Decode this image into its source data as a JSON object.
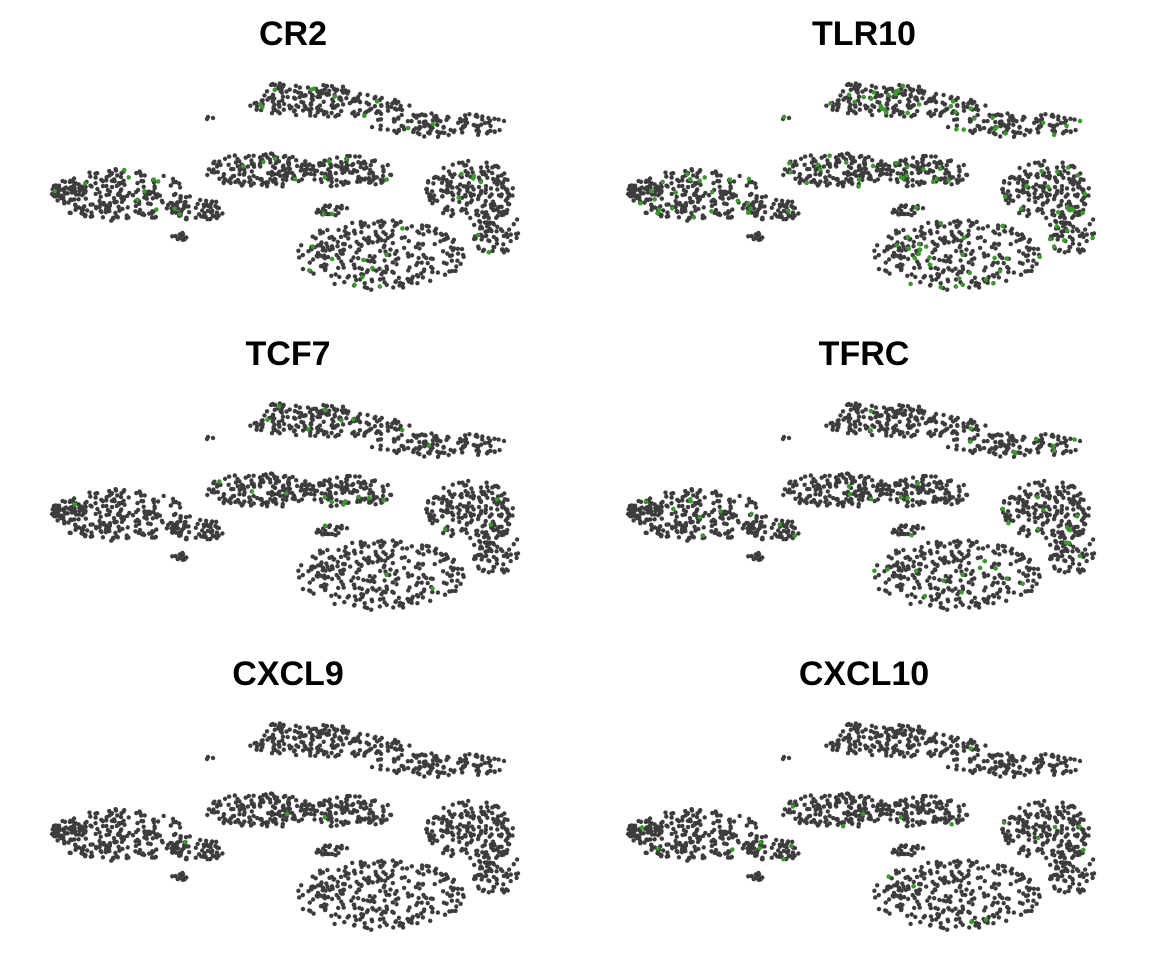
{
  "chart_data": [
    {
      "type": "scatter",
      "title": "CR2",
      "gene": "CR2",
      "expressing_fraction": 0.03,
      "grid": false
    },
    {
      "type": "scatter",
      "title": "TLR10",
      "gene": "TLR10",
      "expressing_fraction": 0.09,
      "grid": false
    },
    {
      "type": "scatter",
      "title": "TCF7",
      "gene": "TCF7",
      "expressing_fraction": 0.02,
      "grid": false
    },
    {
      "type": "scatter",
      "title": "TFRC",
      "gene": "TFRC",
      "expressing_fraction": 0.03,
      "grid": false
    },
    {
      "type": "scatter",
      "title": "CXCL9",
      "gene": "CXCL9",
      "expressing_fraction": 0.002,
      "grid": false
    },
    {
      "type": "scatter",
      "title": "CXCL10",
      "gene": "CXCL10",
      "expressing_fraction": 0.01,
      "grid": false
    }
  ],
  "colors": {
    "cell_point": "#3d3d3d",
    "expressing_point": "#3a9a2c",
    "background": "#ffffff"
  }
}
